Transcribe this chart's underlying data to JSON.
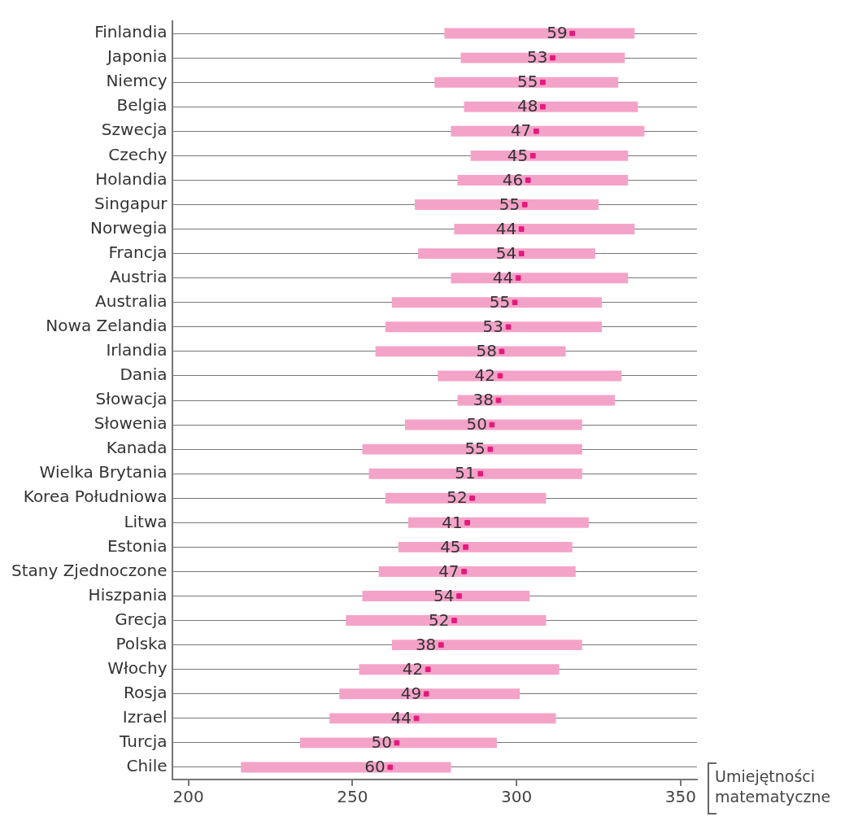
{
  "chart_data": {
    "type": "bar",
    "orientation": "horizontal",
    "xlabel": "Umiejętności matematyczne",
    "categories": [
      "Finlandia",
      "Japonia",
      "Niemcy",
      "Belgia",
      "Szwecja",
      "Czechy",
      "Holandia",
      "Singapur",
      "Norwegia",
      "Francja",
      "Austria",
      "Australia",
      "Nowa Zelandia",
      "Irlandia",
      "Dania",
      "Słowacja",
      "Słowenia",
      "Kanada",
      "Wielka Brytania",
      "Korea Południowa",
      "Litwa",
      "Estonia",
      "Stany Zjednoczone",
      "Hiszpania",
      "Grecja",
      "Polska",
      "Włochy",
      "Rosja",
      "Izrael",
      "Turcja",
      "Chile"
    ],
    "xlim": [
      195,
      355
    ],
    "xticks": [
      200,
      250,
      300,
      350
    ],
    "grid": "y",
    "legend": false,
    "annotations": [
      {
        "text": "59",
        "x": 317,
        "y": "Finlandia"
      },
      {
        "text": "53",
        "x": 311,
        "y": "Japonia"
      },
      {
        "text": "55",
        "x": 308,
        "y": "Niemcy"
      },
      {
        "text": "48",
        "x": 308,
        "y": "Belgia"
      },
      {
        "text": "47",
        "x": 306,
        "y": "Szwecja"
      },
      {
        "text": "45",
        "x": 305,
        "y": "Czechy"
      },
      {
        "text": "46",
        "x": 303.5,
        "y": "Holandia"
      },
      {
        "text": "55",
        "x": 302.5,
        "y": "Singapur"
      },
      {
        "text": "44",
        "x": 301.5,
        "y": "Norwegia"
      },
      {
        "text": "54",
        "x": 301.5,
        "y": "Francja"
      },
      {
        "text": "44",
        "x": 300.5,
        "y": "Austria"
      },
      {
        "text": "55",
        "x": 299.5,
        "y": "Australia"
      },
      {
        "text": "53",
        "x": 297.5,
        "y": "Nowa Zelandia"
      },
      {
        "text": "58",
        "x": 295.5,
        "y": "Irlandia"
      },
      {
        "text": "42",
        "x": 295,
        "y": "Dania"
      },
      {
        "text": "38",
        "x": 294.5,
        "y": "Słowacja"
      },
      {
        "text": "50",
        "x": 292.5,
        "y": "Słowenia"
      },
      {
        "text": "55",
        "x": 292,
        "y": "Kanada"
      },
      {
        "text": "51",
        "x": 289,
        "y": "Wielka Brytania"
      },
      {
        "text": "52",
        "x": 286.5,
        "y": "Korea Południowa"
      },
      {
        "text": "41",
        "x": 285,
        "y": "Litwa"
      },
      {
        "text": "45",
        "x": 284.5,
        "y": "Estonia"
      },
      {
        "text": "47",
        "x": 284,
        "y": "Stany Zjednoczone"
      },
      {
        "text": "54",
        "x": 282.5,
        "y": "Hiszpania"
      },
      {
        "text": "52",
        "x": 281,
        "y": "Grecja"
      },
      {
        "text": "38",
        "x": 277,
        "y": "Polska"
      },
      {
        "text": "42",
        "x": 273,
        "y": "Włochy"
      },
      {
        "text": "49",
        "x": 272.5,
        "y": "Rosja"
      },
      {
        "text": "44",
        "x": 269.5,
        "y": "Izrael"
      },
      {
        "text": "50",
        "x": 263.5,
        "y": "Turcja"
      },
      {
        "text": "60",
        "x": 261.5,
        "y": "Chile"
      }
    ],
    "series": [
      {
        "color": "#f4a3c8",
        "base": [
          278,
          283,
          275,
          284,
          280,
          286,
          282,
          269,
          281,
          270,
          280,
          262,
          260,
          257,
          276,
          282,
          266,
          253,
          255,
          260,
          267,
          264,
          258,
          253,
          248,
          262,
          252,
          246,
          243,
          234,
          216
        ],
        "values": [
          58,
          50,
          56,
          53,
          59,
          48,
          52,
          56,
          55,
          54,
          54,
          64,
          66,
          58,
          56,
          48,
          54,
          67,
          65,
          49,
          55,
          53,
          60,
          51,
          61,
          58,
          61,
          55,
          69,
          60,
          64
        ]
      },
      {
        "type": "scatter",
        "color": "#e4197d",
        "values": [
          317,
          311,
          308,
          308,
          306,
          305,
          303.5,
          302.5,
          301.5,
          301.5,
          300.5,
          299.5,
          297.5,
          295.5,
          295,
          294.5,
          292.5,
          292,
          289,
          286.5,
          285,
          284.5,
          284,
          282.5,
          281,
          277,
          273,
          272.5,
          269.5,
          263.5,
          261.5
        ]
      }
    ]
  }
}
